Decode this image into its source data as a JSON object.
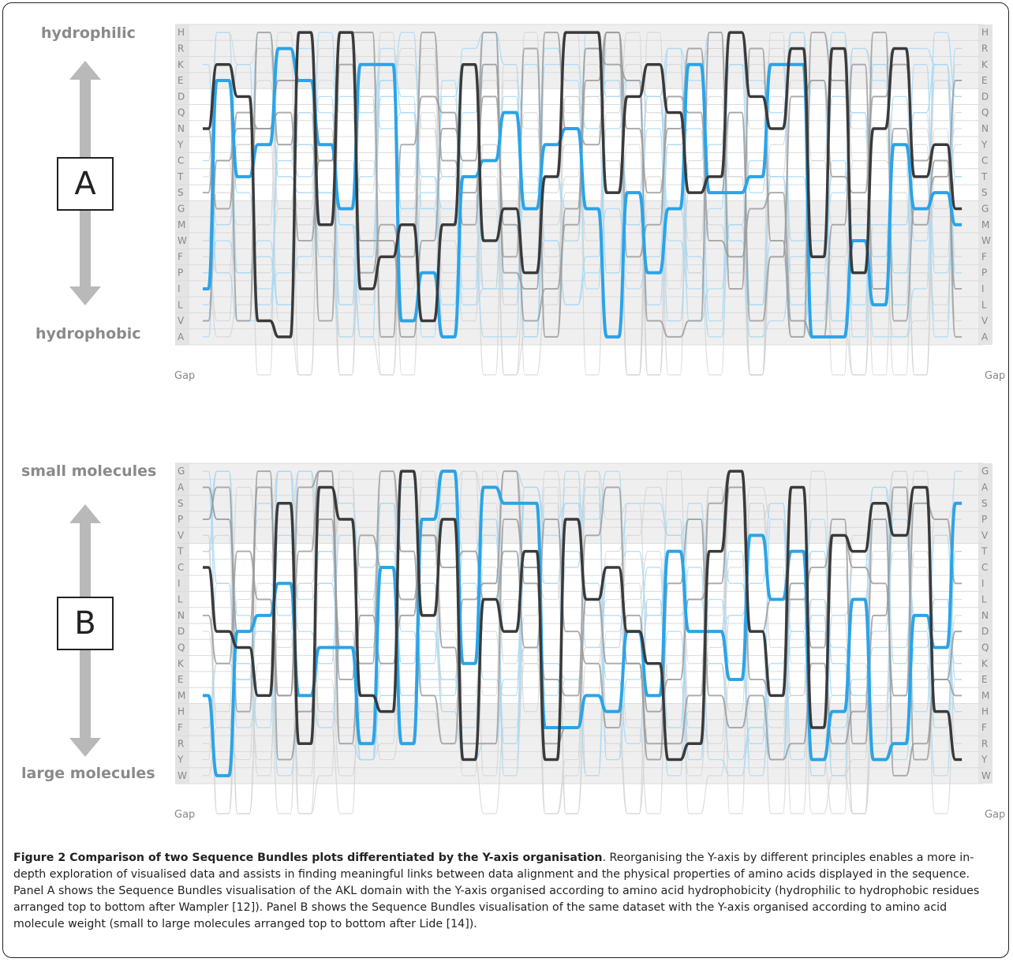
{
  "figure": {
    "caption_title": "Figure 2 Comparison of two Sequence Bundles plots differentiated by the Y-axis organisation",
    "caption_body": ". Reorganising the Y-axis by different principles enables a more in-depth exploration of visualised data and assists in finding meaningful links between data alignment and the physical properties of amino acids displayed in the sequence. Panel A shows the Sequence Bundles visualisation of the AKL domain with the Y-axis organised according to amino acid hydrophobicity (hydrophilic to hydrophobic residues arranged top to bottom after Wampler [12]). Panel B shows the Sequence Bundles visualisation of the same dataset with the Y-axis organised according to amino acid molecule weight (small to large molecules arranged top to bottom after Lide [14])."
  },
  "panels": [
    {
      "letter": "A",
      "top_label": "hydrophilic",
      "bottom_label": "hydrophobic",
      "residues": [
        "H",
        "R",
        "K",
        "E",
        "D",
        "Q",
        "N",
        "Y",
        "C",
        "T",
        "S",
        "G",
        "M",
        "W",
        "F",
        "P",
        "I",
        "L",
        "V",
        "A"
      ],
      "gap_label": "Gap",
      "gap_label_right": "Gap"
    },
    {
      "letter": "B",
      "top_label": "small molecules",
      "bottom_label": "large molecules",
      "residues": [
        "G",
        "A",
        "S",
        "P",
        "V",
        "T",
        "C",
        "I",
        "L",
        "N",
        "D",
        "Q",
        "K",
        "E",
        "M",
        "H",
        "F",
        "R",
        "Y",
        "W"
      ],
      "gap_label": "Gap",
      "gap_label_right": "Gap"
    }
  ],
  "colors": {
    "accent_blue": "#2aa4e8",
    "dark_line": "#3a3a3a",
    "label_gray": "#8a8a8a",
    "band_gray": "#efefef"
  }
}
